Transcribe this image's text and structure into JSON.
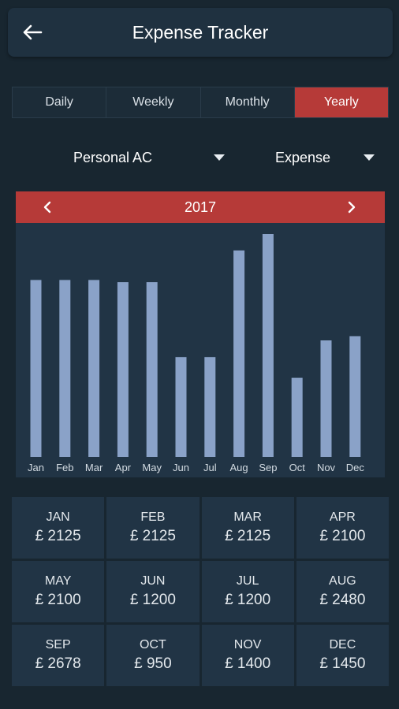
{
  "app_bar": {
    "title": "Expense Tracker",
    "back_icon": "arrow-left-icon"
  },
  "tabs": [
    {
      "label": "Daily",
      "active": false
    },
    {
      "label": "Weekly",
      "active": false
    },
    {
      "label": "Monthly",
      "active": false
    },
    {
      "label": "Yearly",
      "active": true
    }
  ],
  "filters": {
    "account": "Personal AC",
    "type": "Expense"
  },
  "year_nav": {
    "year": "2017",
    "prev_icon": "chevron-left-icon",
    "next_icon": "chevron-right-icon"
  },
  "colors": {
    "accent": "#b63a38",
    "bar": "#8aa2c8",
    "card": "#213445",
    "background": "#182630"
  },
  "chart_data": {
    "type": "bar",
    "categories": [
      "Jan",
      "Feb",
      "Mar",
      "Apr",
      "May",
      "Jun",
      "Jul",
      "Aug",
      "Sep",
      "Oct",
      "Nov",
      "Dec"
    ],
    "values": [
      2125,
      2125,
      2125,
      2100,
      2100,
      1200,
      1200,
      2480,
      2678,
      950,
      1400,
      1450
    ],
    "ylim": [
      0,
      2678
    ],
    "grid": false
  },
  "summary": [
    {
      "month": "JAN",
      "amount": "£ 2125"
    },
    {
      "month": "FEB",
      "amount": "£ 2125"
    },
    {
      "month": "MAR",
      "amount": "£ 2125"
    },
    {
      "month": "APR",
      "amount": "£ 2100"
    },
    {
      "month": "MAY",
      "amount": "£ 2100"
    },
    {
      "month": "JUN",
      "amount": "£ 1200"
    },
    {
      "month": "JUL",
      "amount": "£ 1200"
    },
    {
      "month": "AUG",
      "amount": "£ 2480"
    },
    {
      "month": "SEP",
      "amount": "£ 2678"
    },
    {
      "month": "OCT",
      "amount": "£ 950"
    },
    {
      "month": "NOV",
      "amount": "£ 1400"
    },
    {
      "month": "DEC",
      "amount": "£ 1450"
    }
  ]
}
